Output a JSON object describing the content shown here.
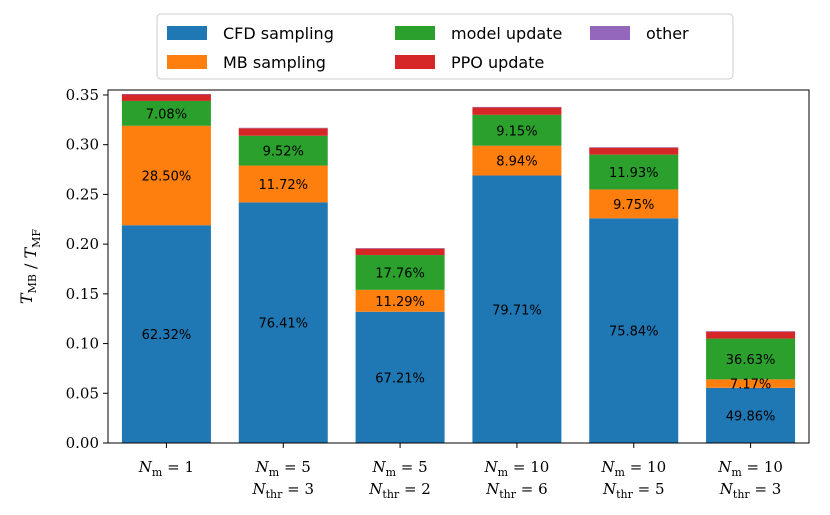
{
  "chart_data": {
    "type": "bar",
    "stacked": true,
    "ylabel": "T_MB / T_MF",
    "ylim": [
      0,
      0.355
    ],
    "yticks": [
      "0.00",
      "0.05",
      "0.10",
      "0.15",
      "0.20",
      "0.25",
      "0.30",
      "0.35"
    ],
    "ytick_values": [
      0,
      0.05,
      0.1,
      0.15,
      0.2,
      0.25,
      0.3,
      0.35
    ],
    "categories": [
      {
        "line1_main": "N",
        "line1_sub": "m",
        "line1_rest": " = 1",
        "line2_main": "",
        "line2_sub": "",
        "line2_rest": ""
      },
      {
        "line1_main": "N",
        "line1_sub": "m",
        "line1_rest": " = 5",
        "line2_main": "N",
        "line2_sub": "thr",
        "line2_rest": " = 3"
      },
      {
        "line1_main": "N",
        "line1_sub": "m",
        "line1_rest": " = 5",
        "line2_main": "N",
        "line2_sub": "thr",
        "line2_rest": " = 2"
      },
      {
        "line1_main": "N",
        "line1_sub": "m",
        "line1_rest": " = 10",
        "line2_main": "N",
        "line2_sub": "thr",
        "line2_rest": " = 6"
      },
      {
        "line1_main": "N",
        "line1_sub": "m",
        "line1_rest": " = 10",
        "line2_main": "N",
        "line2_sub": "thr",
        "line2_rest": " = 5"
      },
      {
        "line1_main": "N",
        "line1_sub": "m",
        "line1_rest": " = 10",
        "line2_main": "N",
        "line2_sub": "thr",
        "line2_rest": " = 3"
      }
    ],
    "series": [
      {
        "name": "CFD sampling",
        "color": "#1f77b4",
        "values": [
          0.219,
          0.242,
          0.132,
          0.269,
          0.226,
          0.0555
        ],
        "labels": [
          "62.32%",
          "76.41%",
          "67.21%",
          "79.71%",
          "75.84%",
          "49.86%"
        ]
      },
      {
        "name": "MB sampling",
        "color": "#ff7f0e",
        "values": [
          0.1,
          0.037,
          0.022,
          0.03,
          0.029,
          0.0085
        ],
        "labels": [
          "28.50%",
          "11.72%",
          "11.29%",
          "8.94%",
          "9.75%",
          "7.17%"
        ]
      },
      {
        "name": "model update",
        "color": "#2ca02c",
        "values": [
          0.025,
          0.03,
          0.035,
          0.031,
          0.035,
          0.041
        ],
        "labels": [
          "7.08%",
          "9.52%",
          "17.76%",
          "9.15%",
          "11.93%",
          "36.63%"
        ]
      },
      {
        "name": "PPO update",
        "color": "#d62728",
        "values": [
          0.0065,
          0.0075,
          0.0065,
          0.0075,
          0.007,
          0.007
        ],
        "labels": [
          "",
          "",
          "",
          "",
          "",
          ""
        ]
      },
      {
        "name": "other",
        "color": "#9467bd",
        "values": [
          0.0005,
          0.0005,
          0.0005,
          0.0005,
          0.0005,
          0.0005
        ],
        "labels": [
          "",
          "",
          "",
          "",
          "",
          ""
        ]
      }
    ],
    "legend": {
      "location": "top-center",
      "ncol": 3,
      "order": [
        "CFD sampling",
        "MB sampling",
        "model update",
        "PPO update",
        "other"
      ]
    }
  }
}
